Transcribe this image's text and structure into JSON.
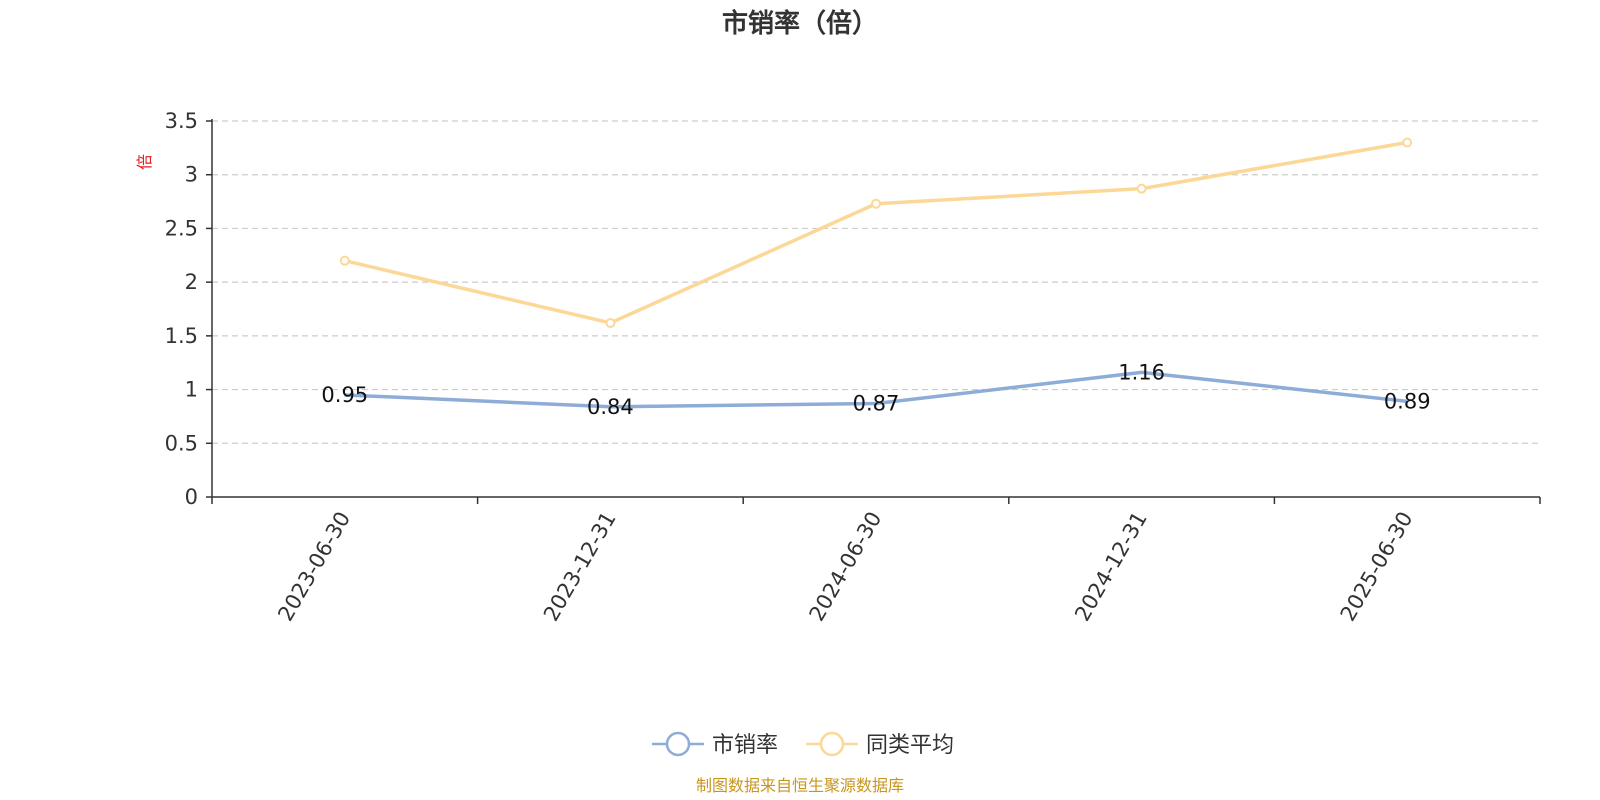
{
  "chart_data": {
    "type": "line",
    "title": "市销率（倍）",
    "ylabel": "倍",
    "x": [
      "2023-06-30",
      "2023-12-31",
      "2024-06-30",
      "2024-12-31",
      "2025-06-30"
    ],
    "ylim": [
      0,
      3.5
    ],
    "yticks": [
      0,
      0.5,
      1,
      1.5,
      2,
      2.5,
      3,
      3.5
    ],
    "ytick_labels": [
      "0",
      "0.5",
      "1",
      "1.5",
      "2",
      "2.5",
      "3",
      "3.5"
    ],
    "grid": true,
    "legend_placement": "bottom-center",
    "series": [
      {
        "name": "市销率",
        "values": [
          0.95,
          0.84,
          0.87,
          1.16,
          0.89
        ],
        "labels": [
          "0.95",
          "0.84",
          "0.87",
          "1.16",
          "0.89"
        ],
        "color": "#8eacd8"
      },
      {
        "name": "同类平均",
        "values": [
          2.2,
          1.62,
          2.73,
          2.87,
          3.3
        ],
        "color": "#fbd897"
      }
    ]
  },
  "source": "制图数据来自恒生聚源数据库",
  "colors": {
    "axis": "#333333",
    "grid": "#cccccc",
    "unit": "#e02020",
    "source": "#c8961e"
  }
}
